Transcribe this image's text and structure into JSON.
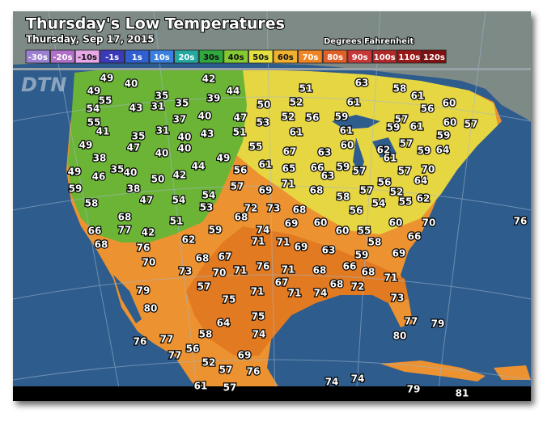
{
  "header": {
    "title": "Thursday's Low Temperatures",
    "subtitle": "Thursday, Sep 17, 2015",
    "units": "Degrees Fahrenheit"
  },
  "logo": "DTN",
  "legend": [
    {
      "label": "-30s",
      "color": "#9b7fd0"
    },
    {
      "label": "-20s",
      "color": "#b070c8"
    },
    {
      "label": "-10s",
      "color": "#e8a8e8"
    },
    {
      "label": "-1s",
      "color": "#3a3ab8"
    },
    {
      "label": "1s",
      "color": "#2f5fd0"
    },
    {
      "label": "10s",
      "color": "#3a80e0"
    },
    {
      "label": "20s",
      "color": "#24a8a0"
    },
    {
      "label": "30s",
      "color": "#2fa840"
    },
    {
      "label": "40s",
      "color": "#84c832"
    },
    {
      "label": "50s",
      "color": "#e4e040"
    },
    {
      "label": "60s",
      "color": "#f0b030"
    },
    {
      "label": "70s",
      "color": "#f08424"
    },
    {
      "label": "80s",
      "color": "#e06028"
    },
    {
      "label": "90s",
      "color": "#c83838"
    },
    {
      "label": "100s",
      "color": "#b02828"
    },
    {
      "label": "110s",
      "color": "#981818"
    },
    {
      "label": "120s",
      "color": "#801010"
    }
  ],
  "temperatures": [
    49,
    40,
    42,
    63,
    58,
    49,
    35,
    44,
    51,
    61,
    55,
    35,
    39,
    52,
    61,
    60,
    54,
    43,
    31,
    50,
    56,
    55,
    37,
    40,
    47,
    53,
    52,
    56,
    59,
    57,
    59,
    61,
    60,
    57,
    41,
    35,
    31,
    43,
    51,
    61,
    61,
    59,
    49,
    47,
    40,
    40,
    55,
    60,
    57,
    38,
    40,
    49,
    67,
    63,
    62,
    61,
    59,
    64,
    44,
    56,
    61,
    65,
    66,
    59,
    57,
    57,
    70,
    49,
    35,
    40,
    46,
    50,
    42,
    63,
    64,
    59,
    38,
    57,
    69,
    71,
    68,
    58,
    57,
    56,
    52,
    58,
    47,
    54,
    54,
    53,
    72,
    73,
    68,
    56,
    54,
    55,
    62,
    68,
    51,
    68,
    69,
    60,
    60,
    70,
    76,
    66,
    77,
    42,
    59,
    74,
    60,
    55,
    66,
    68,
    62,
    71,
    71,
    69,
    58,
    63,
    76,
    68,
    67,
    59,
    69,
    70,
    73,
    70,
    71,
    76,
    71,
    68,
    66,
    68,
    71,
    67,
    68,
    72,
    79,
    57,
    71,
    71,
    74,
    73,
    75,
    80,
    75,
    77,
    79,
    64,
    58,
    74,
    80,
    76,
    77,
    56,
    77,
    69,
    52,
    57,
    76,
    74,
    74,
    61,
    57,
    79,
    81
  ]
}
